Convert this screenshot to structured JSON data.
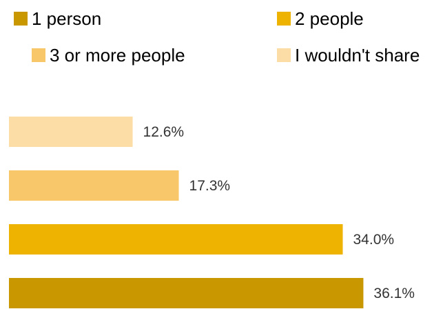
{
  "chart_data": {
    "type": "bar",
    "orientation": "horizontal",
    "categories": [
      "I wouldn't share",
      "3 or more people",
      "2 people",
      "1 person"
    ],
    "values": [
      12.6,
      17.3,
      34.0,
      36.1
    ],
    "value_labels": [
      "12.6%",
      "17.3%",
      "34.0%",
      "36.1%"
    ],
    "colors": [
      "#fcdda6",
      "#f8c76a",
      "#eeb200",
      "#c99700"
    ],
    "xlim": [
      0,
      40
    ],
    "grid": false,
    "axes_visible": false,
    "legend_position": "top",
    "legend": [
      {
        "label": "1 person",
        "color": "#c99700"
      },
      {
        "label": "2 people",
        "color": "#eeb200"
      },
      {
        "label": "3 or more people",
        "color": "#f8c76a"
      },
      {
        "label": "I wouldn't share",
        "color": "#fcdda6"
      }
    ]
  }
}
